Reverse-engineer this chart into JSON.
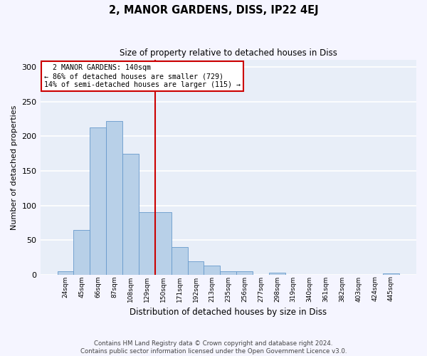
{
  "title": "2, MANOR GARDENS, DISS, IP22 4EJ",
  "subtitle": "Size of property relative to detached houses in Diss",
  "xlabel": "Distribution of detached houses by size in Diss",
  "ylabel": "Number of detached properties",
  "categories": [
    "24sqm",
    "45sqm",
    "66sqm",
    "87sqm",
    "108sqm",
    "129sqm",
    "150sqm",
    "171sqm",
    "192sqm",
    "213sqm",
    "235sqm",
    "256sqm",
    "277sqm",
    "298sqm",
    "319sqm",
    "340sqm",
    "361sqm",
    "382sqm",
    "403sqm",
    "424sqm",
    "445sqm"
  ],
  "values": [
    5,
    65,
    213,
    222,
    175,
    90,
    90,
    40,
    19,
    13,
    5,
    5,
    0,
    3,
    0,
    0,
    0,
    0,
    0,
    0,
    2
  ],
  "bar_color": "#b8d0e8",
  "bar_edge_color": "#6699cc",
  "marker_label": "2 MANOR GARDENS: 140sqm",
  "pct_smaller": "86% of detached houses are smaller (729)",
  "pct_larger": "14% of semi-detached houses are larger (115)",
  "annotation_box_color": "#ffffff",
  "annotation_box_edge": "#cc0000",
  "vline_color": "#cc0000",
  "background_color": "#e8eef8",
  "grid_color": "#ffffff",
  "fig_background": "#f5f5ff",
  "footer": "Contains HM Land Registry data © Crown copyright and database right 2024.\nContains public sector information licensed under the Open Government Licence v3.0.",
  "ylim": [
    0,
    310
  ],
  "yticks": [
    0,
    50,
    100,
    150,
    200,
    250,
    300
  ],
  "vline_x": 5.5
}
